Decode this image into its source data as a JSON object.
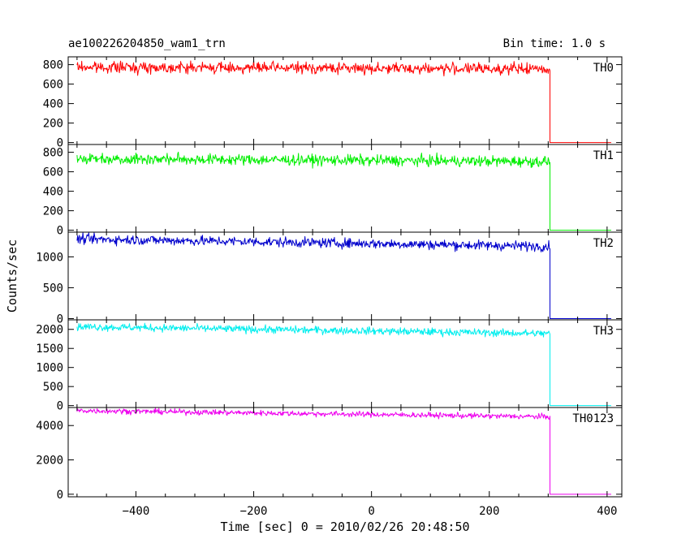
{
  "header": {
    "title": "ae100226204850_wam1_trn",
    "bin_time": "Bin time: 1.0 s"
  },
  "chart_data": {
    "type": "line",
    "xlabel": "Time [sec] 0 = 2010/02/26 20:48:50",
    "ylabel": "Counts/sec",
    "xlim": [
      -515,
      425
    ],
    "x_ticks": [
      -400,
      -200,
      0,
      200,
      400
    ],
    "x_tick_labels": [
      "−400",
      "−200",
      "0",
      "200",
      "400"
    ],
    "x_step": 1.0,
    "data_x_range": [
      -500,
      303
    ],
    "drop_x": 303,
    "series": [
      {
        "name": "TH0",
        "color": "#ff0000",
        "ylim": [
          -20,
          880
        ],
        "y_ticks": [
          0,
          200,
          400,
          600,
          800
        ],
        "y_tick_labels": [
          "0",
          "200",
          "400",
          "600",
          "800"
        ],
        "level_start": 775,
        "level_end": 755,
        "noise": 28,
        "after_drop": 0
      },
      {
        "name": "TH1",
        "color": "#00ee00",
        "ylim": [
          -20,
          880
        ],
        "y_ticks": [
          0,
          200,
          400,
          600,
          800
        ],
        "y_tick_labels": [
          "0",
          "200",
          "400",
          "600",
          "800"
        ],
        "level_start": 735,
        "level_end": 705,
        "noise": 28,
        "after_drop": 0
      },
      {
        "name": "TH2",
        "color": "#0000cc",
        "ylim": [
          -20,
          1400
        ],
        "y_ticks": [
          0,
          500,
          1000
        ],
        "y_tick_labels": [
          "0",
          "500",
          "1000"
        ],
        "level_start": 1290,
        "level_end": 1170,
        "noise": 40,
        "after_drop": 0
      },
      {
        "name": "TH3",
        "color": "#00eeee",
        "ylim": [
          -50,
          2250
        ],
        "y_ticks": [
          0,
          500,
          1000,
          1500,
          2000
        ],
        "y_tick_labels": [
          "0",
          "500",
          "1000",
          "1500",
          "2000"
        ],
        "level_start": 2070,
        "level_end": 1890,
        "noise": 50,
        "after_drop": 0
      },
      {
        "name": "TH0123",
        "color": "#ee00ee",
        "ylim": [
          -150,
          5050
        ],
        "y_ticks": [
          0,
          2000,
          4000
        ],
        "y_tick_labels": [
          "0",
          "2000",
          "4000"
        ],
        "level_start": 4870,
        "level_end": 4510,
        "noise": 80,
        "after_drop": 0
      }
    ]
  }
}
